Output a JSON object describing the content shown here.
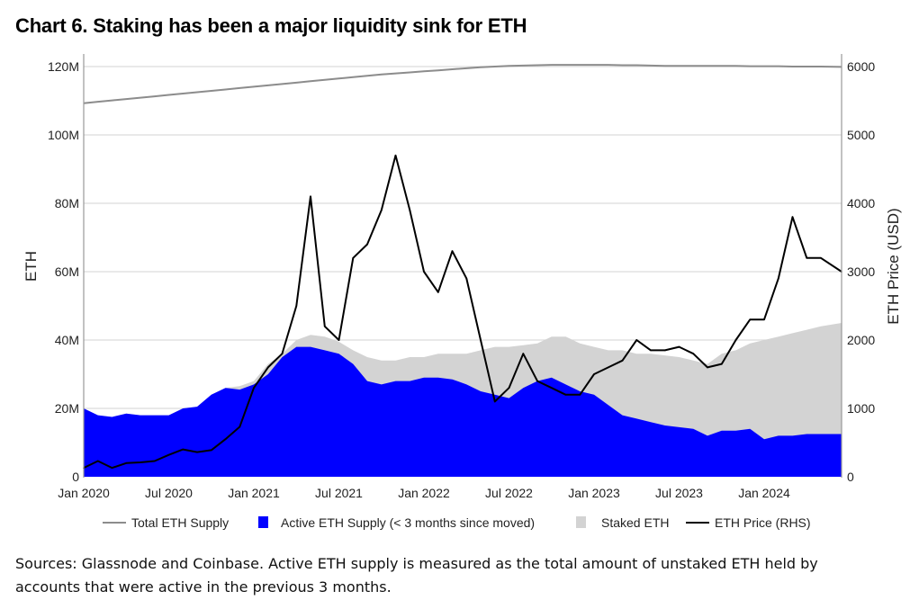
{
  "title": "Chart 6. Staking has been a major liquidity sink for ETH",
  "sources": "Sources: Glassnode and Coinbase. Active ETH supply is measured as the total amount of unstaked ETH held by accounts that were active in the previous 3 months.",
  "chart_data": {
    "type": "area",
    "title": "Chart 6. Staking has been a major liquidity sink for ETH",
    "xlabel": "",
    "ylabel": "ETH",
    "ylabel_right": "ETH Price (USD)",
    "ylim": [
      0,
      120000000
    ],
    "ylim_right": [
      0,
      6000
    ],
    "yticks": [
      "0",
      "20M",
      "40M",
      "60M",
      "80M",
      "100M",
      "120M"
    ],
    "yticks_right": [
      "0",
      "1000",
      "2000",
      "3000",
      "4000",
      "5000",
      "6000"
    ],
    "xticks": [
      "Jan 2020",
      "Jul 2020",
      "Jan 2021",
      "Jul 2021",
      "Jan 2022",
      "Jul 2022",
      "Jan 2023",
      "Jul 2023",
      "Jan 2024"
    ],
    "xlim": [
      "2020-01",
      "2024-06"
    ],
    "grid": "horizontal",
    "legend_position": "bottom",
    "colors": {
      "total": "#8c8c8c",
      "active": "#0000ff",
      "staked": "#d3d3d3",
      "price": "#000000"
    },
    "x": [
      "2020-01",
      "2020-02",
      "2020-03",
      "2020-04",
      "2020-05",
      "2020-06",
      "2020-07",
      "2020-08",
      "2020-09",
      "2020-10",
      "2020-11",
      "2020-12",
      "2021-01",
      "2021-02",
      "2021-03",
      "2021-04",
      "2021-05",
      "2021-06",
      "2021-07",
      "2021-08",
      "2021-09",
      "2021-10",
      "2021-11",
      "2021-12",
      "2022-01",
      "2022-02",
      "2022-03",
      "2022-04",
      "2022-05",
      "2022-06",
      "2022-07",
      "2022-08",
      "2022-09",
      "2022-10",
      "2022-11",
      "2022-12",
      "2023-01",
      "2023-02",
      "2023-03",
      "2023-04",
      "2023-05",
      "2023-06",
      "2023-07",
      "2023-08",
      "2023-09",
      "2023-10",
      "2023-11",
      "2023-12",
      "2024-01",
      "2024-02",
      "2024-03",
      "2024-04",
      "2024-05",
      "2024-06"
    ],
    "series": [
      {
        "name": "Total ETH Supply",
        "kind": "line",
        "axis": "left",
        "unit": "M ETH",
        "values": [
          109.3,
          109.7,
          110.1,
          110.5,
          110.9,
          111.3,
          111.7,
          112.1,
          112.5,
          112.9,
          113.3,
          113.7,
          114.1,
          114.5,
          114.9,
          115.3,
          115.7,
          116.1,
          116.5,
          116.9,
          117.3,
          117.7,
          118.0,
          118.3,
          118.6,
          118.9,
          119.2,
          119.5,
          119.8,
          120.0,
          120.2,
          120.3,
          120.4,
          120.5,
          120.5,
          120.5,
          120.5,
          120.5,
          120.4,
          120.4,
          120.3,
          120.2,
          120.2,
          120.2,
          120.2,
          120.2,
          120.2,
          120.1,
          120.1,
          120.1,
          120.0,
          120.0,
          120.0,
          119.9
        ]
      },
      {
        "name": "Active ETH Supply (< 3 months since moved)",
        "kind": "area",
        "axis": "left",
        "unit": "M ETH",
        "values": [
          20,
          18,
          17.5,
          18.5,
          18,
          18,
          18,
          20,
          20.5,
          24,
          26,
          25.5,
          27,
          30,
          35,
          38,
          38,
          37,
          36,
          33,
          28,
          27,
          28,
          28,
          29,
          29,
          28.5,
          27,
          25,
          24,
          23,
          26,
          28,
          29,
          27,
          25,
          24,
          21,
          18,
          17,
          16,
          15,
          14.5,
          14,
          12,
          13.5,
          13.5,
          14,
          11,
          12,
          12,
          12.5,
          12.5,
          12.5
        ]
      },
      {
        "name": "Staked ETH",
        "kind": "stacked-area",
        "axis": "left",
        "unit": "M ETH",
        "values": [
          0,
          0,
          0,
          0,
          0,
          0,
          0,
          0,
          0,
          0,
          0,
          1,
          1,
          3,
          1,
          2,
          3.5,
          4,
          3.5,
          4,
          7,
          7,
          6,
          7,
          6,
          7,
          7.5,
          9,
          12,
          14,
          15,
          12.5,
          11,
          12,
          14,
          14,
          14,
          16,
          19,
          19,
          20,
          20.5,
          20.5,
          20,
          21,
          22.5,
          23.5,
          25,
          29,
          29,
          30,
          30.5,
          31.5,
          32.5
        ]
      },
      {
        "name": "ETH Price (RHS)",
        "kind": "line",
        "axis": "right",
        "unit": "USD",
        "values": [
          130,
          230,
          130,
          200,
          210,
          230,
          320,
          400,
          360,
          390,
          550,
          730,
          1300,
          1600,
          1800,
          2500,
          4100,
          2200,
          2000,
          3200,
          3400,
          3900,
          4700,
          3900,
          3000,
          2700,
          3300,
          2900,
          2000,
          1100,
          1300,
          1800,
          1400,
          1300,
          1200,
          1200,
          1500,
          1600,
          1700,
          2000,
          1850,
          1850,
          1900,
          1800,
          1600,
          1650,
          2000,
          2300,
          2300,
          2900,
          3800,
          3200,
          3200,
          3000
        ]
      }
    ]
  }
}
